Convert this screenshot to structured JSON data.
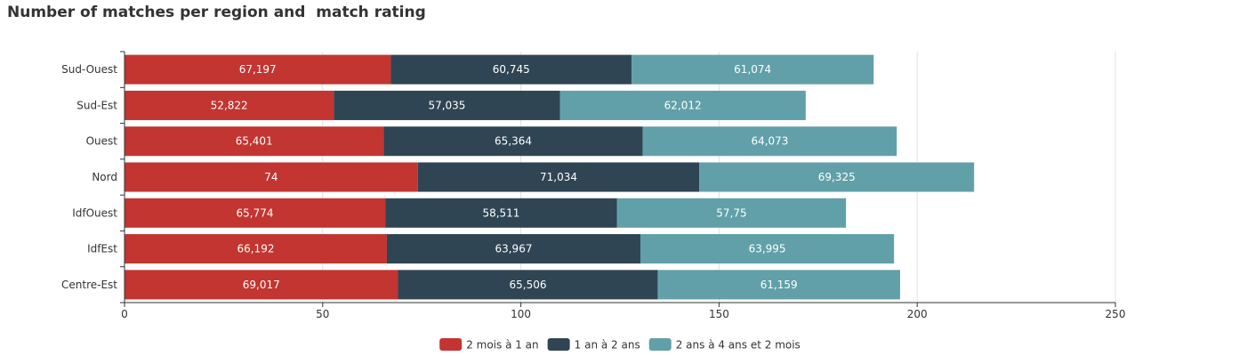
{
  "chart_data": {
    "type": "bar",
    "orientation": "horizontal",
    "stacked": true,
    "title": "Number of matches per region and  match rating",
    "categories": [
      "Sud-Ouest",
      "Sud-Est",
      "Ouest",
      "Nord",
      "IdfOuest",
      "IdfEst",
      "Centre-Est"
    ],
    "series": [
      {
        "name": "2 mois à 1 an",
        "color": "#c23531",
        "values": [
          67.197,
          52.822,
          65.401,
          74,
          65.774,
          66.192,
          69.017
        ],
        "labels": [
          "67,197",
          "52,822",
          "65,401",
          "74",
          "65,774",
          "66,192",
          "69,017"
        ]
      },
      {
        "name": "1 an à 2 ans",
        "color": "#2f4554",
        "values": [
          60.745,
          57.035,
          65.364,
          71.034,
          58.511,
          63.967,
          65.506
        ],
        "labels": [
          "60,745",
          "57,035",
          "65,364",
          "71,034",
          "58,511",
          "63,967",
          "65,506"
        ]
      },
      {
        "name": "2 ans à 4 ans et 2 mois",
        "color": "#61a0a8",
        "values": [
          61.074,
          62.012,
          64.073,
          69.325,
          57.75,
          63.995,
          61.159
        ],
        "labels": [
          "61,074",
          "62,012",
          "64,073",
          "69,325",
          "57,75",
          "63,995",
          "61,159"
        ]
      }
    ],
    "xlim": [
      0,
      250
    ],
    "xticks": [
      0,
      50,
      100,
      150,
      200,
      250
    ],
    "xlabel": "",
    "ylabel": "",
    "grid": true,
    "legend_position": "bottom-center"
  }
}
